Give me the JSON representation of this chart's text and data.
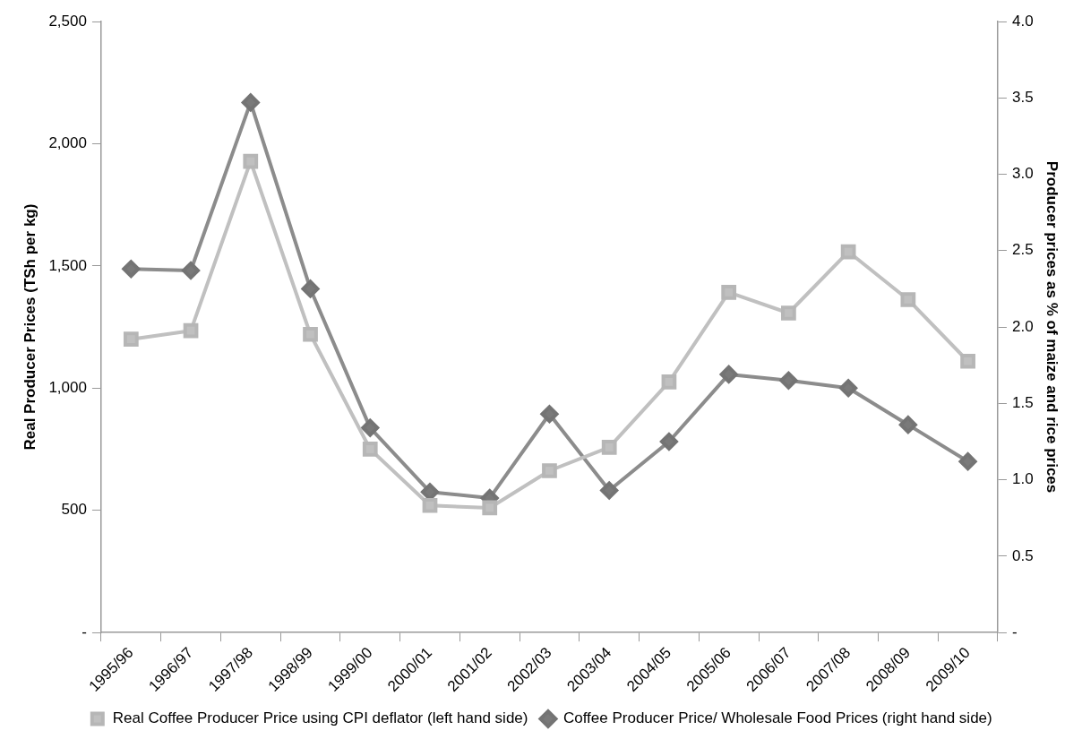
{
  "chart_data": {
    "type": "line",
    "ylabel": "Real Producer Prices (TSh per kg)",
    "y2label": "Producer prices as % of maize and rice prices",
    "categories": [
      "1995/96",
      "1996/97",
      "1997/98",
      "1998/99",
      "1999/00",
      "2000/01",
      "2001/02",
      "2002/03",
      "2003/04",
      "2004/05",
      "2005/06",
      "2006/07",
      "2007/08",
      "2008/09",
      "2009/10"
    ],
    "series": [
      {
        "name": "Real Coffee Producer Price using CPI deflator (left hand side)",
        "color": "#c0c0c0",
        "marker": "square",
        "values": [
          1200,
          1235,
          1928,
          1220,
          750,
          520,
          510,
          662,
          758,
          1025,
          1392,
          1307,
          1558,
          1362,
          1110
        ]
      },
      {
        "name": "Coffee Producer Price/ Wholesale Food Prices (right hand side)",
        "color": "#7a7a7a",
        "marker": "diamond",
        "axis": "y2",
        "values": [
          2.38,
          2.37,
          3.47,
          2.25,
          1.34,
          0.92,
          0.88,
          1.43,
          0.93,
          1.25,
          1.69,
          1.65,
          1.6,
          1.36,
          1.12
        ]
      }
    ],
    "ylim": [
      0,
      2500
    ],
    "yticks": [
      {
        "value": 0,
        "label": "-"
      },
      {
        "value": 500,
        "label": "500"
      },
      {
        "value": 1000,
        "label": "1,000"
      },
      {
        "value": 1500,
        "label": "1,500"
      },
      {
        "value": 2000,
        "label": "2,000"
      },
      {
        "value": 2500,
        "label": "2,500"
      }
    ],
    "y2lim": [
      0,
      4
    ],
    "y2ticks": [
      {
        "value": 0,
        "label": "-"
      },
      {
        "value": 0.5,
        "label": "0.5"
      },
      {
        "value": 1,
        "label": "1.0"
      },
      {
        "value": 1.5,
        "label": "1.5"
      },
      {
        "value": 2,
        "label": "2.0"
      },
      {
        "value": 2.5,
        "label": "2.5"
      },
      {
        "value": 3,
        "label": "3.0"
      },
      {
        "value": 3.5,
        "label": "3.5"
      },
      {
        "value": 4,
        "label": "4.0"
      }
    ],
    "grid": false,
    "legend": "bottom",
    "line_style": "solid"
  }
}
